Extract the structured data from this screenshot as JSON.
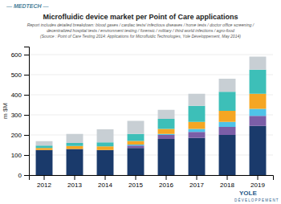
{
  "chart_data": {
    "type": "bar",
    "stacked": true,
    "title": "Microfluidic device market per Point of Care applications",
    "subtitle": [
      "Report includes detailed breakdown: blood gases / cardiac tests/ infectious diseases / home tests / doctor office screening /",
      "decentralized hospital tests / environment testing / forensic / military / third world infections / agro-food"
    ],
    "annotations": [
      "(Source : Point of Care Testing 2014: Applications for Microfluidic Technologies, Yole Développement, May 2014)",
      "— MEDTECH —",
      "YOLE",
      "D É V E L O P P E M E N T"
    ],
    "ylabel": "m $M",
    "categories": [
      "2012",
      "2013",
      "2014",
      "2015",
      "2016",
      "2017",
      "2018",
      "2019"
    ],
    "series": [
      {
        "color": "#1a3a6b",
        "values": [
          125,
          130,
          125,
          135,
          180,
          185,
          200,
          245
        ]
      },
      {
        "color": "#7b5ea7",
        "values": [
          0,
          0,
          0,
          12,
          20,
          30,
          40,
          50
        ]
      },
      {
        "color": "#4fc3e8",
        "values": [
          0,
          0,
          0,
          5,
          5,
          15,
          25,
          35
        ]
      },
      {
        "color": "#f5a623",
        "values": [
          10,
          15,
          18,
          18,
          25,
          35,
          55,
          75
        ]
      },
      {
        "color": "#3dbfb8",
        "values": [
          12,
          15,
          20,
          35,
          50,
          80,
          95,
          120
        ]
      },
      {
        "color": "#c8cfd4",
        "values": [
          22,
          45,
          65,
          65,
          45,
          60,
          65,
          65
        ]
      }
    ],
    "ylim": [
      0,
      640
    ],
    "yticks": [
      0,
      100,
      200,
      300,
      400,
      500,
      600
    ],
    "grid": true
  }
}
